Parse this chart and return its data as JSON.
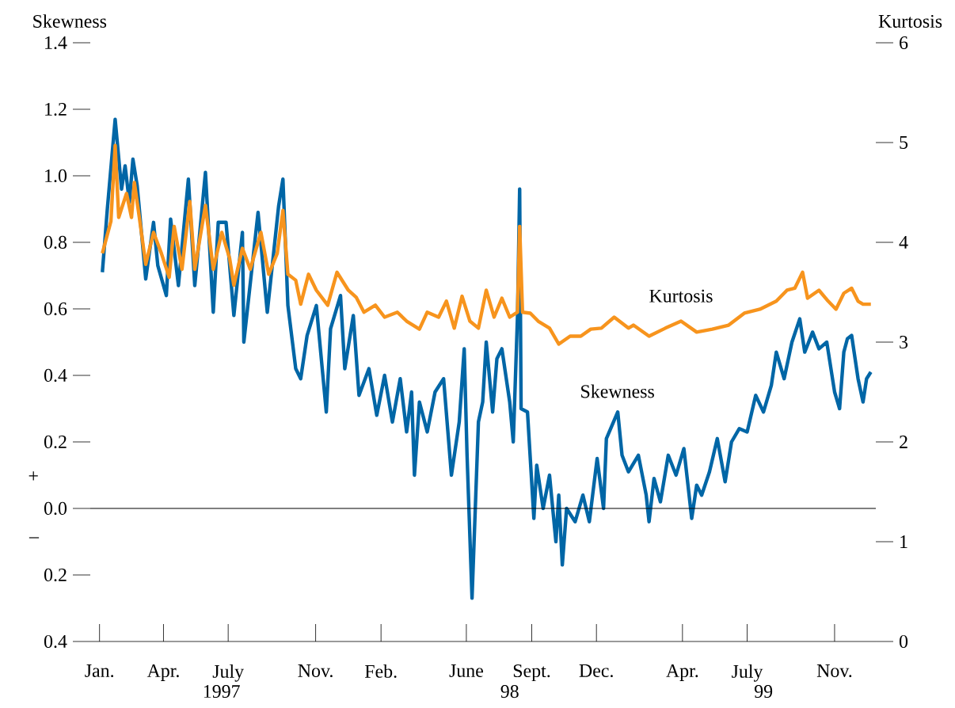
{
  "chart_data": {
    "type": "line",
    "ylabel": "Skewness",
    "y2label": "Kurtosis",
    "xticks": [
      {
        "value": "1997-01-15",
        "label": "Jan."
      },
      {
        "value": "1997-04-15",
        "label": "Apr."
      },
      {
        "value": "1997-07-15",
        "label": "July"
      },
      {
        "value": "1997-11-15",
        "label": "Nov."
      },
      {
        "value": "1998-02-15",
        "label": "Feb."
      },
      {
        "value": "1998-06-15",
        "label": "June"
      },
      {
        "value": "1998-09-15",
        "label": "Sept."
      },
      {
        "value": "1998-12-15",
        "label": "Dec."
      },
      {
        "value": "1999-04-15",
        "label": "Apr."
      },
      {
        "value": "1999-07-15",
        "label": "July"
      },
      {
        "value": "1999-11-15",
        "label": "Nov."
      }
    ],
    "xlim": [
      "1997-01-02",
      "2000-01-12"
    ],
    "ylim": [
      -0.4,
      1.4
    ],
    "yticks": [
      {
        "value": -0.4,
        "label": "0.4"
      },
      {
        "value": -0.2,
        "label": "0.2"
      },
      {
        "value": 0.0,
        "label": "0.0"
      },
      0.2,
      0.4,
      0.6,
      0.8,
      {
        "value": 1.0,
        "label": "1.0"
      },
      1.2,
      1.4
    ],
    "y2lim": [
      0,
      6
    ],
    "y2ticks": [
      0,
      1,
      2,
      3,
      4,
      5,
      6
    ],
    "ref_lines": [
      {
        "axis": "y",
        "value": 0,
        "color": "#000000"
      }
    ],
    "annotations": [
      "1997",
      "98",
      "99",
      "+",
      "–"
    ],
    "legend": false,
    "grid": false,
    "series": [
      {
        "name": "Skewness",
        "color": "#0066a6",
        "x": [
          "1997-01-19",
          "1997-01-26",
          "1997-02-06",
          "1997-02-15",
          "1997-02-20",
          "1997-02-26",
          "1997-03-03",
          "1997-03-09",
          "1997-03-21",
          "1997-04-01",
          "1997-04-07",
          "1997-04-19",
          "1997-04-25",
          "1997-05-06",
          "1997-05-20",
          "1997-05-29",
          "1997-06-13",
          "1997-06-24",
          "1997-07-01",
          "1997-07-12",
          "1997-07-23",
          "1997-08-04",
          "1997-08-06",
          "1997-08-26",
          "1997-09-08",
          "1997-09-24",
          "1997-09-30",
          "1997-10-07",
          "1997-10-18",
          "1997-10-25",
          "1997-11-03",
          "1997-11-16",
          "1997-11-30",
          "1997-12-06",
          "1997-12-20",
          "1997-12-26",
          "1998-01-07",
          "1998-01-15",
          "1998-01-29",
          "1998-02-09",
          "1998-02-20",
          "1998-03-03",
          "1998-03-14",
          "1998-03-23",
          "1998-03-30",
          "1998-04-03",
          "1998-04-10",
          "1998-04-21",
          "1998-05-02",
          "1998-05-14",
          "1998-05-25",
          "1998-06-05",
          "1998-06-12",
          "1998-06-16",
          "1998-06-23",
          "1998-07-02",
          "1998-07-08",
          "1998-07-13",
          "1998-07-22",
          "1998-07-28",
          "1998-08-04",
          "1998-08-15",
          "1998-08-20",
          "1998-08-26",
          "1998-08-29",
          "1998-08-31",
          "1998-09-09",
          "1998-09-18",
          "1998-09-22",
          "1998-10-01",
          "1998-10-10",
          "1998-10-19",
          "1998-10-23",
          "1998-10-28",
          "1998-11-03",
          "1998-11-15",
          "1998-11-26",
          "1998-12-05",
          "1998-12-16",
          "1998-12-25",
          "1998-12-29",
          "1999-01-14",
          "1999-01-20",
          "1999-01-29",
          "1999-02-12",
          "1999-02-23",
          "1999-02-27",
          "1999-03-06",
          "1999-03-15",
          "1999-03-26",
          "1999-04-06",
          "1999-04-17",
          "1999-04-28",
          "1999-05-05",
          "1999-05-12",
          "1999-05-23",
          "1999-06-03",
          "1999-06-14",
          "1999-06-23",
          "1999-07-04",
          "1999-07-15",
          "1999-07-27",
          "1999-08-07",
          "1999-08-18",
          "1999-08-25",
          "1999-09-05",
          "1999-09-16",
          "1999-09-27",
          "1999-10-04",
          "1999-10-15",
          "1999-10-24",
          "1999-11-04",
          "1999-11-15",
          "1999-11-22",
          "1999-11-28",
          "1999-12-03",
          "1999-12-09",
          "1999-12-18",
          "1999-12-25",
          "1999-12-30",
          "2000-01-05"
        ],
        "values": [
          0.71,
          0.9,
          1.17,
          0.96,
          1.03,
          0.92,
          1.05,
          0.97,
          0.69,
          0.86,
          0.73,
          0.64,
          0.87,
          0.67,
          0.99,
          0.67,
          1.01,
          0.59,
          0.86,
          0.86,
          0.58,
          0.83,
          0.5,
          0.89,
          0.59,
          0.91,
          0.99,
          0.61,
          0.42,
          0.39,
          0.52,
          0.61,
          0.29,
          0.54,
          0.64,
          0.42,
          0.58,
          0.34,
          0.42,
          0.28,
          0.4,
          0.26,
          0.39,
          0.23,
          0.35,
          0.1,
          0.32,
          0.23,
          0.35,
          0.39,
          0.1,
          0.26,
          0.48,
          0.16,
          -0.27,
          0.26,
          0.32,
          0.5,
          0.29,
          0.45,
          0.48,
          0.32,
          0.2,
          0.58,
          0.96,
          0.3,
          0.29,
          -0.03,
          0.13,
          0.0,
          0.1,
          -0.1,
          0.04,
          -0.17,
          0.0,
          -0.04,
          0.04,
          -0.04,
          0.15,
          0.0,
          0.21,
          0.29,
          0.16,
          0.11,
          0.16,
          0.04,
          -0.04,
          0.09,
          0.02,
          0.16,
          0.1,
          0.18,
          -0.03,
          0.07,
          0.04,
          0.11,
          0.21,
          0.08,
          0.2,
          0.24,
          0.23,
          0.34,
          0.29,
          0.37,
          0.47,
          0.39,
          0.5,
          0.57,
          0.47,
          0.53,
          0.48,
          0.5,
          0.35,
          0.3,
          0.47,
          0.51,
          0.52,
          0.39,
          0.32,
          0.39,
          0.41
        ]
      },
      {
        "name": "Kurtosis",
        "color": "#f7941d",
        "axis": "y2",
        "x": [
          "1997-01-19",
          "1997-01-31",
          "1997-02-06",
          "1997-02-11",
          "1997-02-22",
          "1997-03-01",
          "1997-03-05",
          "1997-03-12",
          "1997-03-21",
          "1997-04-01",
          "1997-04-12",
          "1997-04-23",
          "1997-04-30",
          "1997-05-11",
          "1997-05-22",
          "1997-05-29",
          "1997-06-13",
          "1997-06-24",
          "1997-07-06",
          "1997-07-17",
          "1997-07-23",
          "1997-08-04",
          "1997-08-15",
          "1997-08-30",
          "1997-09-10",
          "1997-09-22",
          "1997-09-30",
          "1997-10-07",
          "1997-10-18",
          "1997-10-25",
          "1997-11-05",
          "1997-11-16",
          "1997-12-02",
          "1997-12-15",
          "1997-12-31",
          "1998-01-11",
          "1998-01-22",
          "1998-02-07",
          "1998-02-20",
          "1998-03-10",
          "1998-03-23",
          "1998-04-10",
          "1998-04-21",
          "1998-05-07",
          "1998-05-18",
          "1998-05-29",
          "1998-06-09",
          "1998-06-20",
          "1998-07-02",
          "1998-07-13",
          "1998-07-24",
          "1998-08-04",
          "1998-08-15",
          "1998-08-26",
          "1998-08-29",
          "1998-09-02",
          "1998-09-13",
          "1998-09-24",
          "1998-10-10",
          "1998-10-23",
          "1998-11-08",
          "1998-11-23",
          "1998-12-07",
          "1998-12-22",
          "1999-01-09",
          "1999-01-29",
          "1999-02-05",
          "1999-02-27",
          "1999-03-22",
          "1999-04-13",
          "1999-05-05",
          "1999-05-27",
          "1999-06-19",
          "1999-07-11",
          "1999-08-02",
          "1999-08-25",
          "1999-09-09",
          "1999-09-20",
          "1999-10-01",
          "1999-10-08",
          "1999-10-24",
          "1999-11-06",
          "1999-11-17",
          "1999-11-28",
          "1999-12-09",
          "1999-12-18",
          "1999-12-25",
          "2000-01-05"
        ],
        "values": [
          3.89,
          4.21,
          4.97,
          4.25,
          4.49,
          4.25,
          4.6,
          4.25,
          3.78,
          4.1,
          3.89,
          3.65,
          4.16,
          3.73,
          4.41,
          3.73,
          4.37,
          3.73,
          4.1,
          3.84,
          3.57,
          3.94,
          3.73,
          4.1,
          3.68,
          3.89,
          4.32,
          3.68,
          3.62,
          3.38,
          3.68,
          3.52,
          3.37,
          3.7,
          3.52,
          3.45,
          3.3,
          3.37,
          3.25,
          3.3,
          3.21,
          3.13,
          3.3,
          3.25,
          3.41,
          3.14,
          3.46,
          3.21,
          3.14,
          3.52,
          3.25,
          3.44,
          3.25,
          3.3,
          4.16,
          3.3,
          3.29,
          3.21,
          3.14,
          2.98,
          3.06,
          3.06,
          3.13,
          3.14,
          3.25,
          3.14,
          3.17,
          3.06,
          3.14,
          3.21,
          3.1,
          3.13,
          3.17,
          3.29,
          3.33,
          3.41,
          3.52,
          3.54,
          3.7,
          3.44,
          3.52,
          3.41,
          3.33,
          3.49,
          3.54,
          3.41,
          3.38,
          3.38
        ]
      }
    ]
  }
}
